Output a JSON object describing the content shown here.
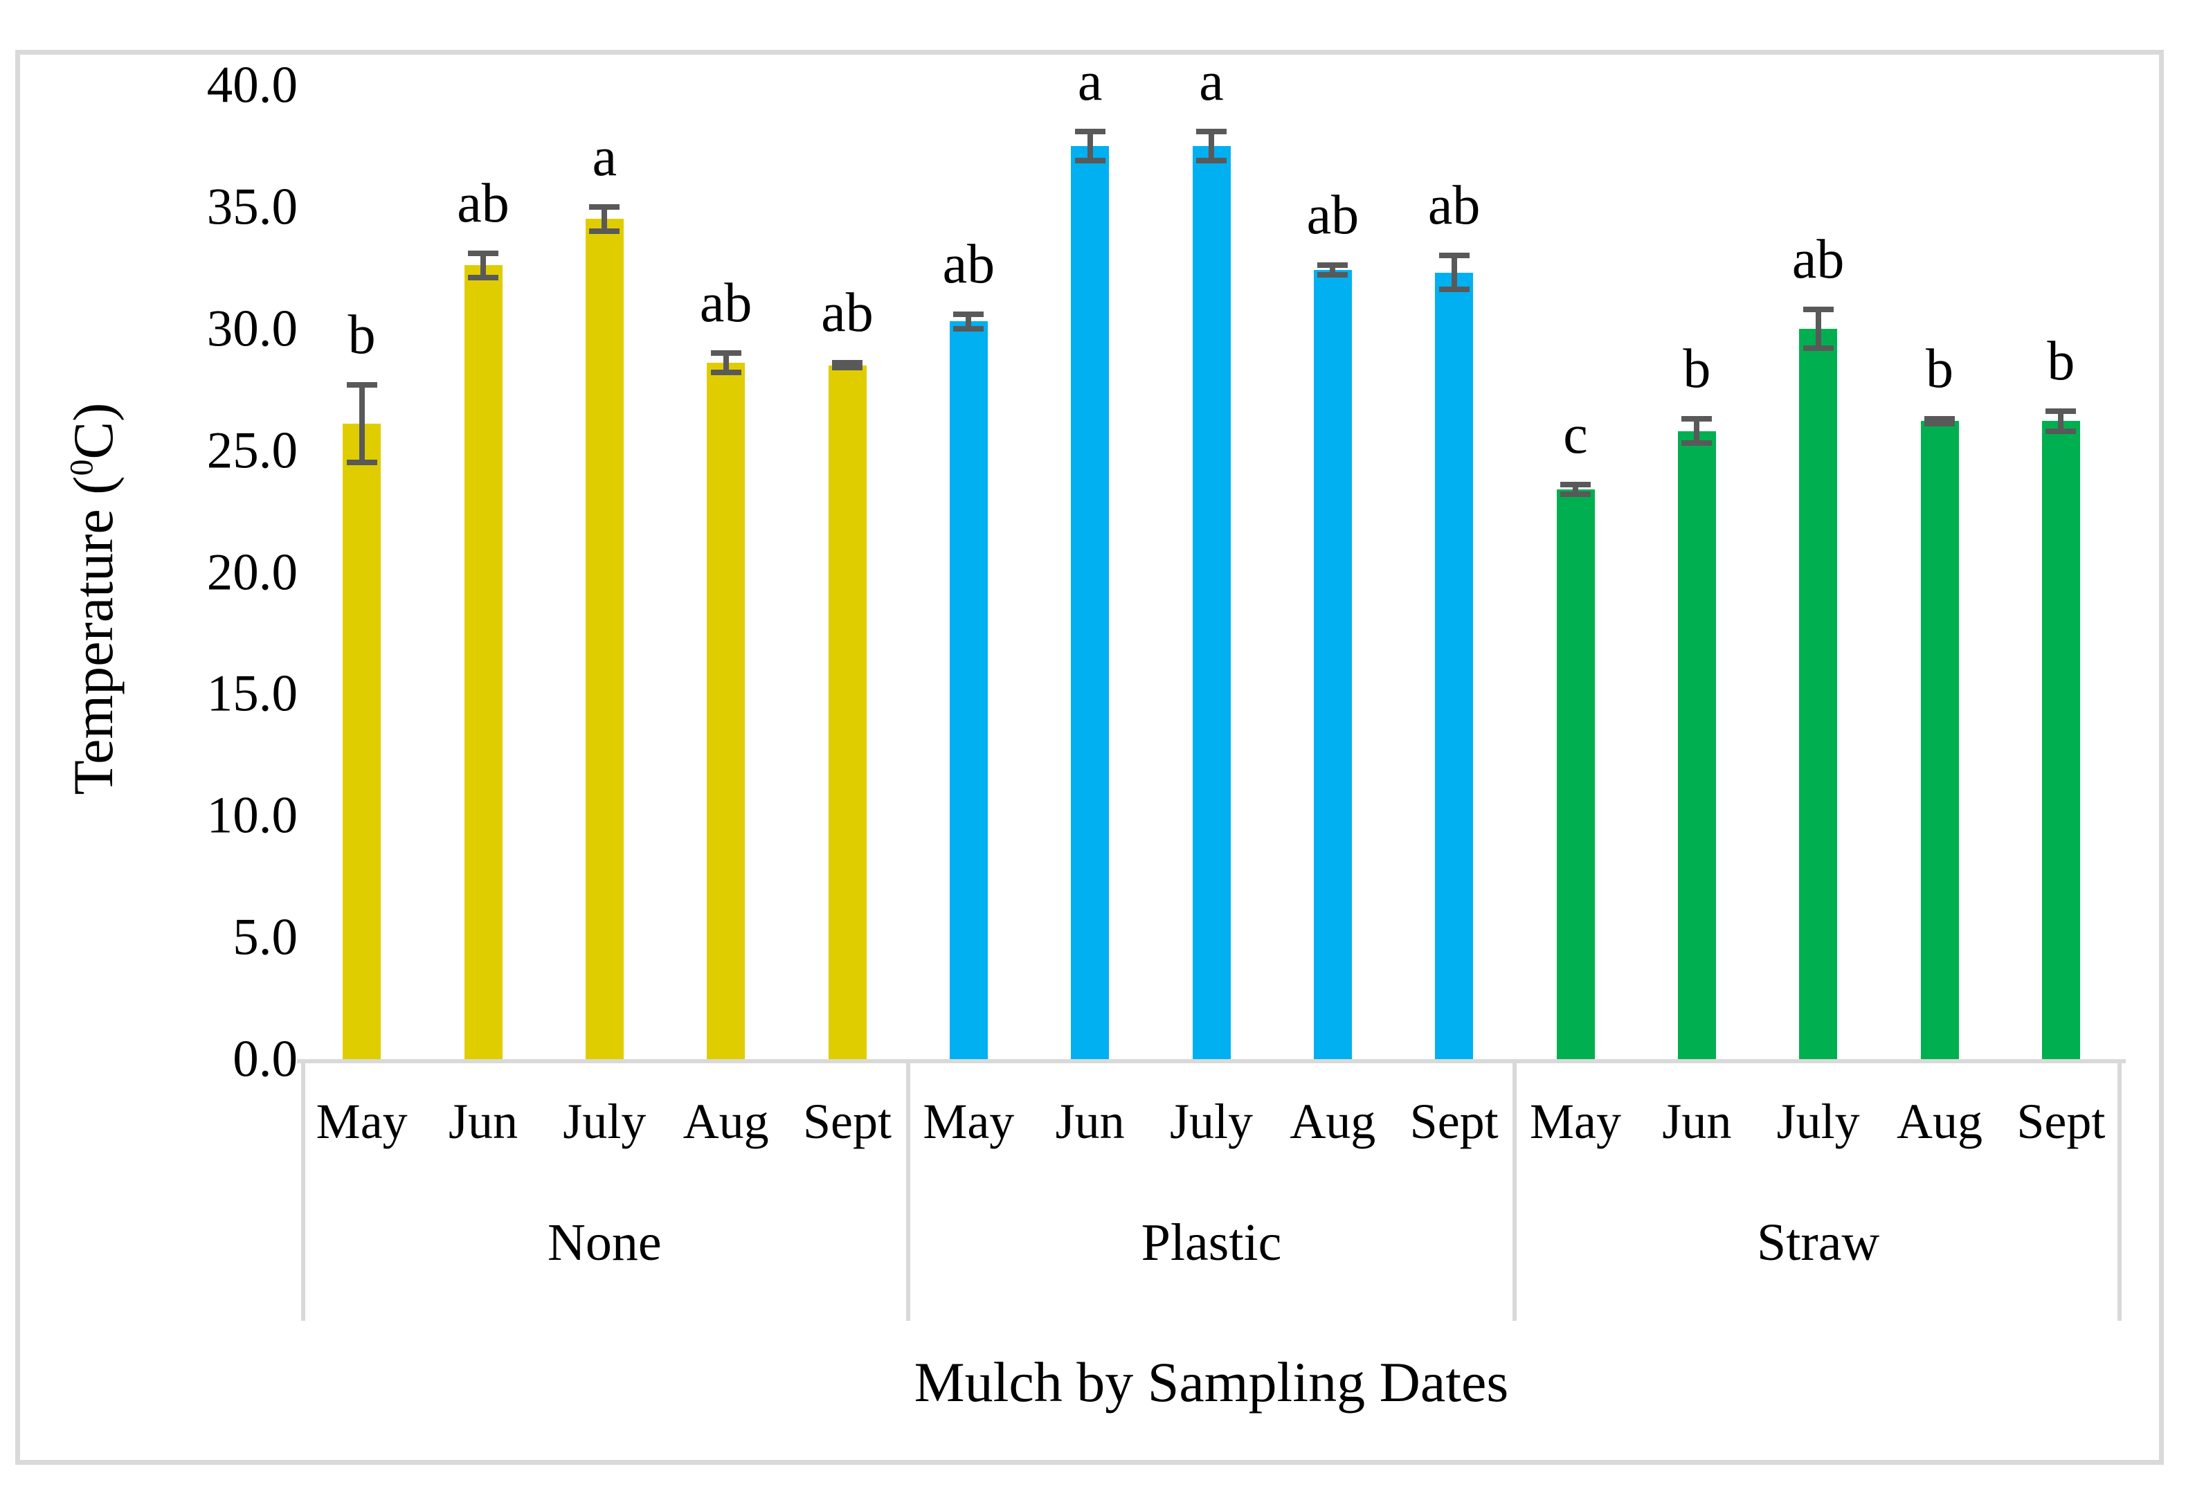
{
  "chart_data": {
    "type": "bar",
    "title": "",
    "xlabel": "Mulch by Sampling Dates",
    "ylabel": "Temperature (0C)",
    "ylabel_parts": {
      "pre": "Temperature (",
      "sup": "0",
      "post": "C)"
    },
    "ylim": [
      0,
      40
    ],
    "y_tick_labels": [
      "40.0",
      "35.0",
      "30.0",
      "25.0",
      "20.0",
      "15.0",
      "10.0",
      "5.0",
      "0.0"
    ],
    "grid": false,
    "legend": "none",
    "axis_color": "#d9d9d9",
    "error_bar_color": "#595959",
    "groups": [
      {
        "label": "None",
        "color": "#e0cd00",
        "months": [
          "May",
          "Jun",
          "July",
          "Aug",
          "Sept"
        ],
        "values": [
          26.1,
          32.6,
          34.5,
          28.6,
          28.5
        ],
        "errors": [
          1.6,
          0.5,
          0.5,
          0.4,
          0.1
        ],
        "sig": [
          "b",
          "ab",
          "a",
          "ab",
          "ab"
        ]
      },
      {
        "label": "Plastic",
        "color": "#00b0f0",
        "months": [
          "May",
          "Jun",
          "July",
          "Aug",
          "Sept"
        ],
        "values": [
          30.3,
          37.5,
          37.5,
          32.4,
          32.3
        ],
        "errors": [
          0.3,
          0.6,
          0.6,
          0.2,
          0.7
        ],
        "sig": [
          "ab",
          "a",
          "a",
          "ab",
          "ab"
        ]
      },
      {
        "label": "Straw",
        "color": "#00b050",
        "months": [
          "May",
          "Jun",
          "July",
          "Aug",
          "Sept"
        ],
        "values": [
          23.4,
          25.8,
          30.0,
          26.2,
          26.2
        ],
        "errors": [
          0.2,
          0.5,
          0.8,
          0.1,
          0.4
        ],
        "sig": [
          "c",
          "b",
          "ab",
          "b",
          "b"
        ]
      }
    ]
  }
}
